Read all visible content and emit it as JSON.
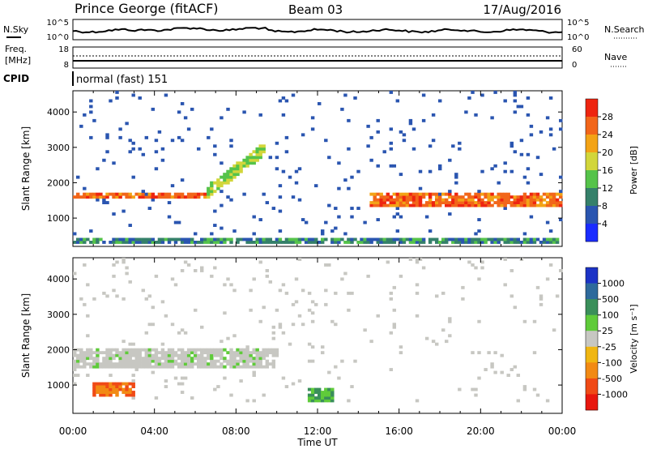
{
  "header": {
    "station": "Prince George (fitACF)",
    "beam": "Beam 03",
    "date": "17/Aug/2016"
  },
  "strips": {
    "nsky": {
      "label": "N.Sky",
      "ticks_left": [
        "10^5",
        "10^0"
      ],
      "ticks_right": [
        "10^5",
        "10^0"
      ],
      "right_label": "N.Search"
    },
    "freq": {
      "label": "Freq.",
      "unit": "[MHz]",
      "ticks_left": [
        "18",
        "8"
      ],
      "ticks_right": [
        "60",
        "0"
      ],
      "right_label": "Nave"
    },
    "cpid": {
      "label": "CPID",
      "value": "normal (fast) 151"
    }
  },
  "chart_data": [
    {
      "type": "heatmap",
      "title": "",
      "xlabel": "Time UT",
      "ylabel": "Slant Range [km]",
      "xlim": [
        0,
        24
      ],
      "ylim": [
        200,
        4600
      ],
      "x_ticks": [
        "00:00",
        "04:00",
        "08:00",
        "12:00",
        "16:00",
        "20:00",
        "00:00"
      ],
      "y_ticks": [
        "1000",
        "2000",
        "3000",
        "4000"
      ],
      "colorbar": {
        "label": "Power [dB]",
        "ticks": [
          "4",
          "8",
          "12",
          "16",
          "20",
          "24",
          "28"
        ],
        "colors": [
          "#1a2cff",
          "#2a55b0",
          "#35806a",
          "#55c34a",
          "#d2d63a",
          "#f3a316",
          "#f2661a",
          "#ee2510"
        ]
      },
      "bands": [
        {
          "name": "ground scatter trail",
          "t": [
            0,
            6.5
          ],
          "range": [
            1600,
            1700
          ],
          "power_db": 24
        },
        {
          "name": "rising echo",
          "t": [
            6.5,
            9.5
          ],
          "range": [
            1700,
            3000
          ],
          "power_db": 14
        },
        {
          "name": "morning echo",
          "t": [
            14.5,
            24
          ],
          "range": [
            1300,
            1700
          ],
          "power_db": 24
        },
        {
          "name": "near-range clutter",
          "t": [
            0,
            24
          ],
          "range": [
            250,
            450
          ],
          "power_db": 8
        }
      ]
    },
    {
      "type": "heatmap",
      "title": "",
      "xlabel": "Time UT",
      "ylabel": "Slant Range [km]",
      "xlim": [
        0,
        24
      ],
      "ylim": [
        200,
        4600
      ],
      "x_ticks": [
        "00:00",
        "04:00",
        "08:00",
        "12:00",
        "16:00",
        "20:00",
        "00:00"
      ],
      "y_ticks": [
        "1000",
        "2000",
        "3000",
        "4000"
      ],
      "colorbar": {
        "label": "Velocity [m s⁻¹]",
        "ticks": [
          "1000",
          "500",
          "100",
          "25",
          "-25",
          "-100",
          "-500",
          "-1000"
        ],
        "colors": [
          "#1c33c6",
          "#2e6a9c",
          "#3a8f5a",
          "#5fcb3a",
          "#c7c7c2",
          "#f0b612",
          "#f28a14",
          "#f04a16",
          "#e8170e"
        ]
      },
      "bands": [
        {
          "name": "ground scatter",
          "t": [
            0,
            10
          ],
          "range": [
            1500,
            2000
          ],
          "velocity": 0
        },
        {
          "name": "ionospheric echo",
          "t": [
            0.9,
            3.0
          ],
          "range": [
            700,
            1100
          ],
          "velocity": -300
        },
        {
          "name": "ionospheric echo 2",
          "t": [
            11.5,
            12.8
          ],
          "range": [
            500,
            900
          ],
          "velocity": 300
        }
      ]
    }
  ]
}
